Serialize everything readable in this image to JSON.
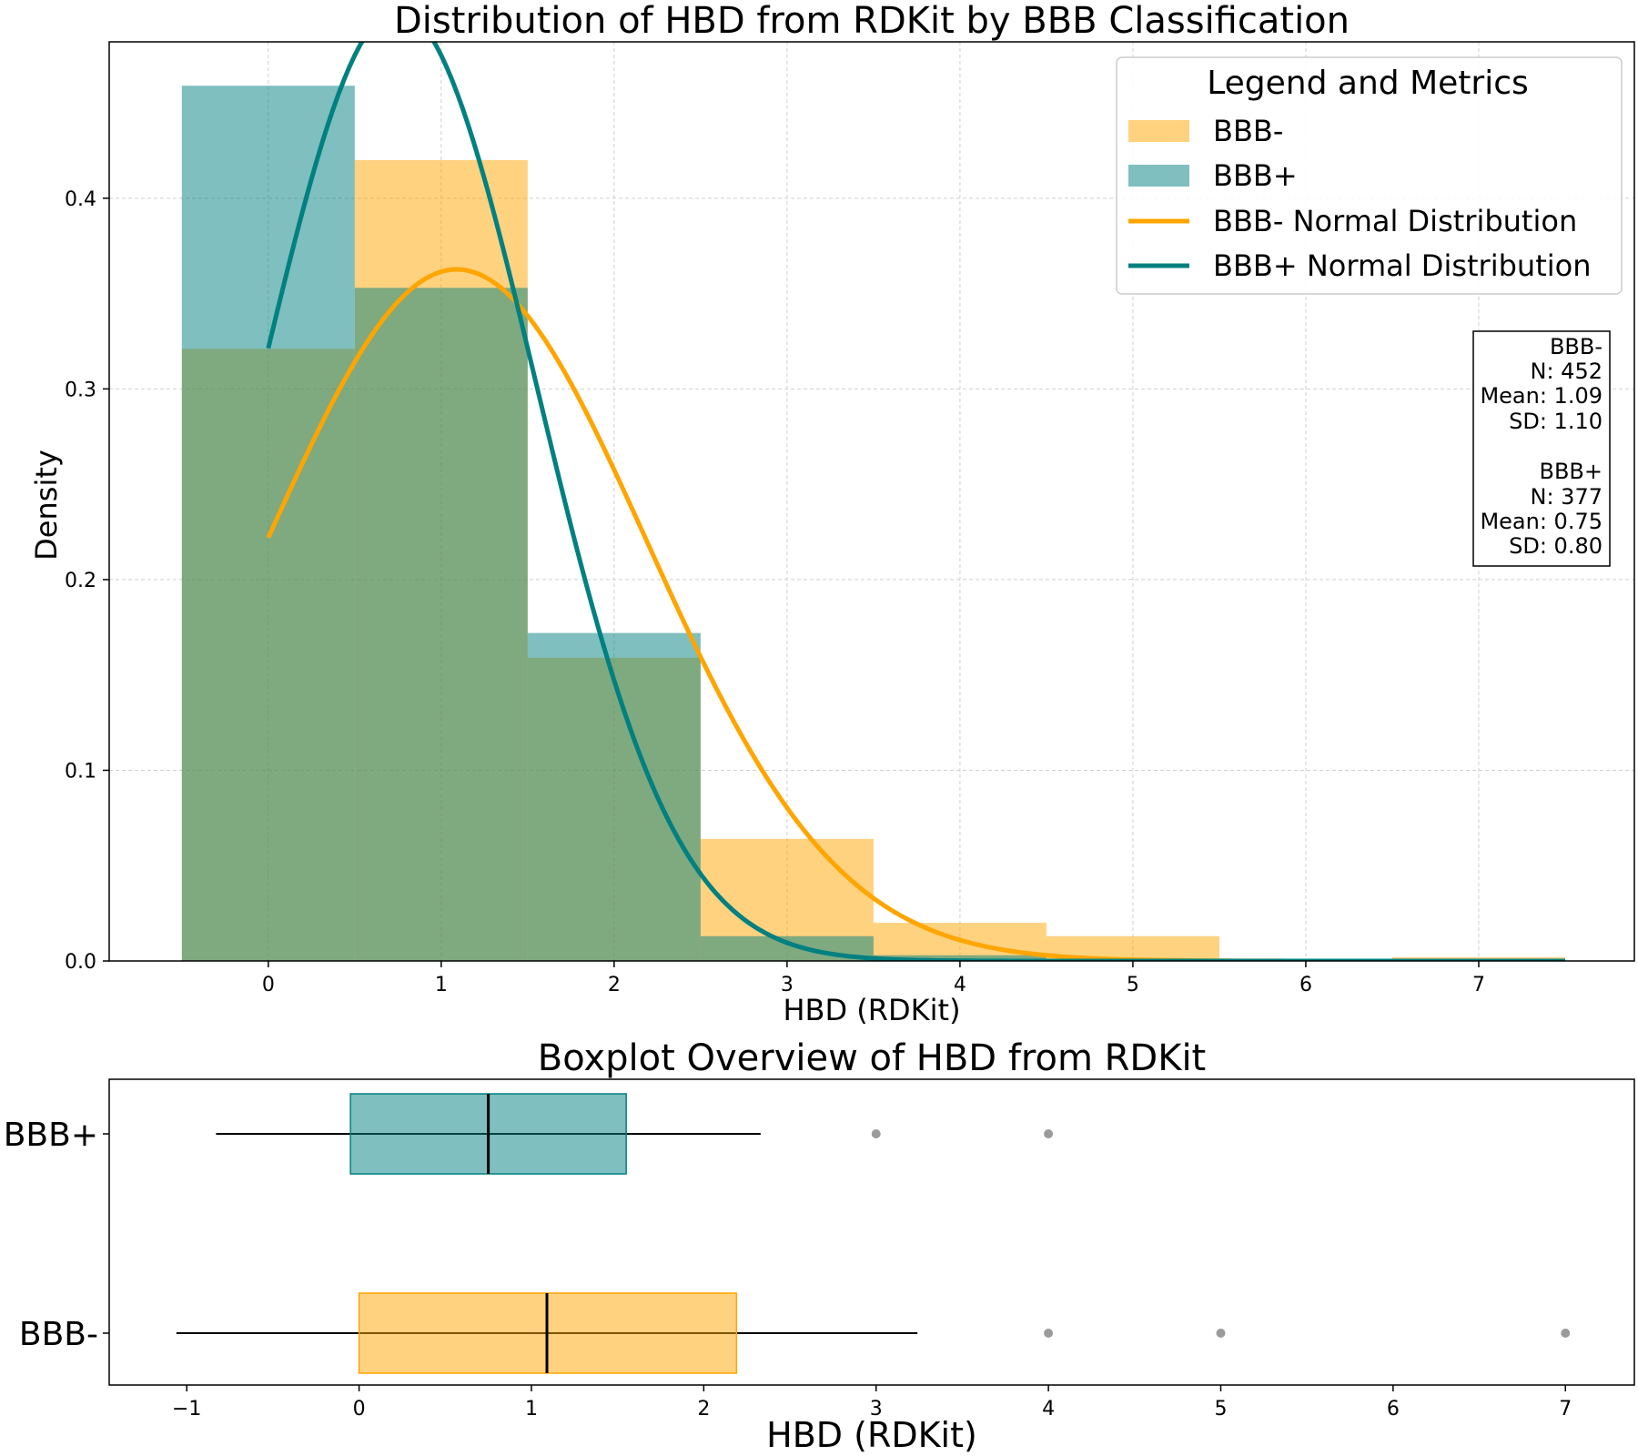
{
  "chart_data": [
    {
      "type": "bar",
      "subtype": "histogram-with-normal-curves",
      "title": "Distribution of HBD from RDKit by BBB Classification",
      "xlabel": "HBD (RDKit)",
      "ylabel": "Density",
      "xlim": [
        -0.92,
        7.9
      ],
      "ylim": [
        0,
        0.482
      ],
      "xticks": [
        0,
        1,
        2,
        3,
        4,
        5,
        6,
        7
      ],
      "yticks": [
        0.0,
        0.1,
        0.2,
        0.3,
        0.4
      ],
      "ytick_labels": [
        "0.0",
        "0.1",
        "0.2",
        "0.3",
        "0.4"
      ],
      "grid": true,
      "bin_edges": [
        -0.5,
        0.5,
        1.5,
        2.5,
        3.5,
        4.5,
        5.5,
        6.5,
        7.5
      ],
      "series": [
        {
          "name": "BBB-",
          "color": "#FFA500",
          "opacity": 0.5,
          "values": [
            0.321,
            0.42,
            0.159,
            0.064,
            0.02,
            0.013,
            0.001,
            0.002
          ]
        },
        {
          "name": "BBB+",
          "color": "#008080",
          "opacity": 0.5,
          "values": [
            0.459,
            0.353,
            0.172,
            0.013,
            0.003,
            0.0,
            0.0,
            0.0
          ]
        }
      ],
      "curves": [
        {
          "name": "BBB- Normal Distribution",
          "color": "#FFA500",
          "mean": 1.09,
          "sd": 1.1,
          "x_range": [
            0,
            7.5
          ]
        },
        {
          "name": "BBB+ Normal Distribution",
          "color": "#008080",
          "mean": 0.75,
          "sd": 0.8,
          "x_range": [
            0,
            7.5
          ]
        }
      ],
      "legend": {
        "title": "Legend and Metrics",
        "placement": "top-right",
        "entries": [
          "BBB-",
          "BBB+",
          "BBB- Normal Distribution",
          "BBB+ Normal Distribution"
        ]
      },
      "stats_box": {
        "placement": "right",
        "lines": [
          "BBB-",
          "N: 452",
          "Mean: 1.09",
          "SD: 1.10",
          "",
          "BBB+",
          "N: 377",
          "Mean: 0.75",
          "SD: 0.80"
        ]
      }
    },
    {
      "type": "boxplot",
      "title": "Boxplot Overview of HBD from RDKit",
      "xlabel": "HBD (RDKit)",
      "ylabel": "",
      "xlim": [
        -1.45,
        7.4
      ],
      "xticks": [
        -1,
        0,
        1,
        2,
        3,
        4,
        5,
        6,
        7
      ],
      "xtick_labels": [
        "−1",
        "0",
        "1",
        "2",
        "3",
        "4",
        "5",
        "6",
        "7"
      ],
      "categories": [
        "BBB+",
        "BBB-"
      ],
      "boxes": [
        {
          "name": "BBB+",
          "color": "#008080",
          "whisker_low": -0.83,
          "q1": -0.05,
          "median": 0.75,
          "q3": 1.55,
          "whisker_high": 2.33,
          "outliers": [
            3,
            4
          ]
        },
        {
          "name": "BBB-",
          "color": "#FFA500",
          "whisker_low": -1.06,
          "q1": 0.0,
          "median": 1.09,
          "q3": 2.19,
          "whisker_high": 3.24,
          "outliers": [
            4,
            5,
            7
          ]
        }
      ]
    }
  ]
}
